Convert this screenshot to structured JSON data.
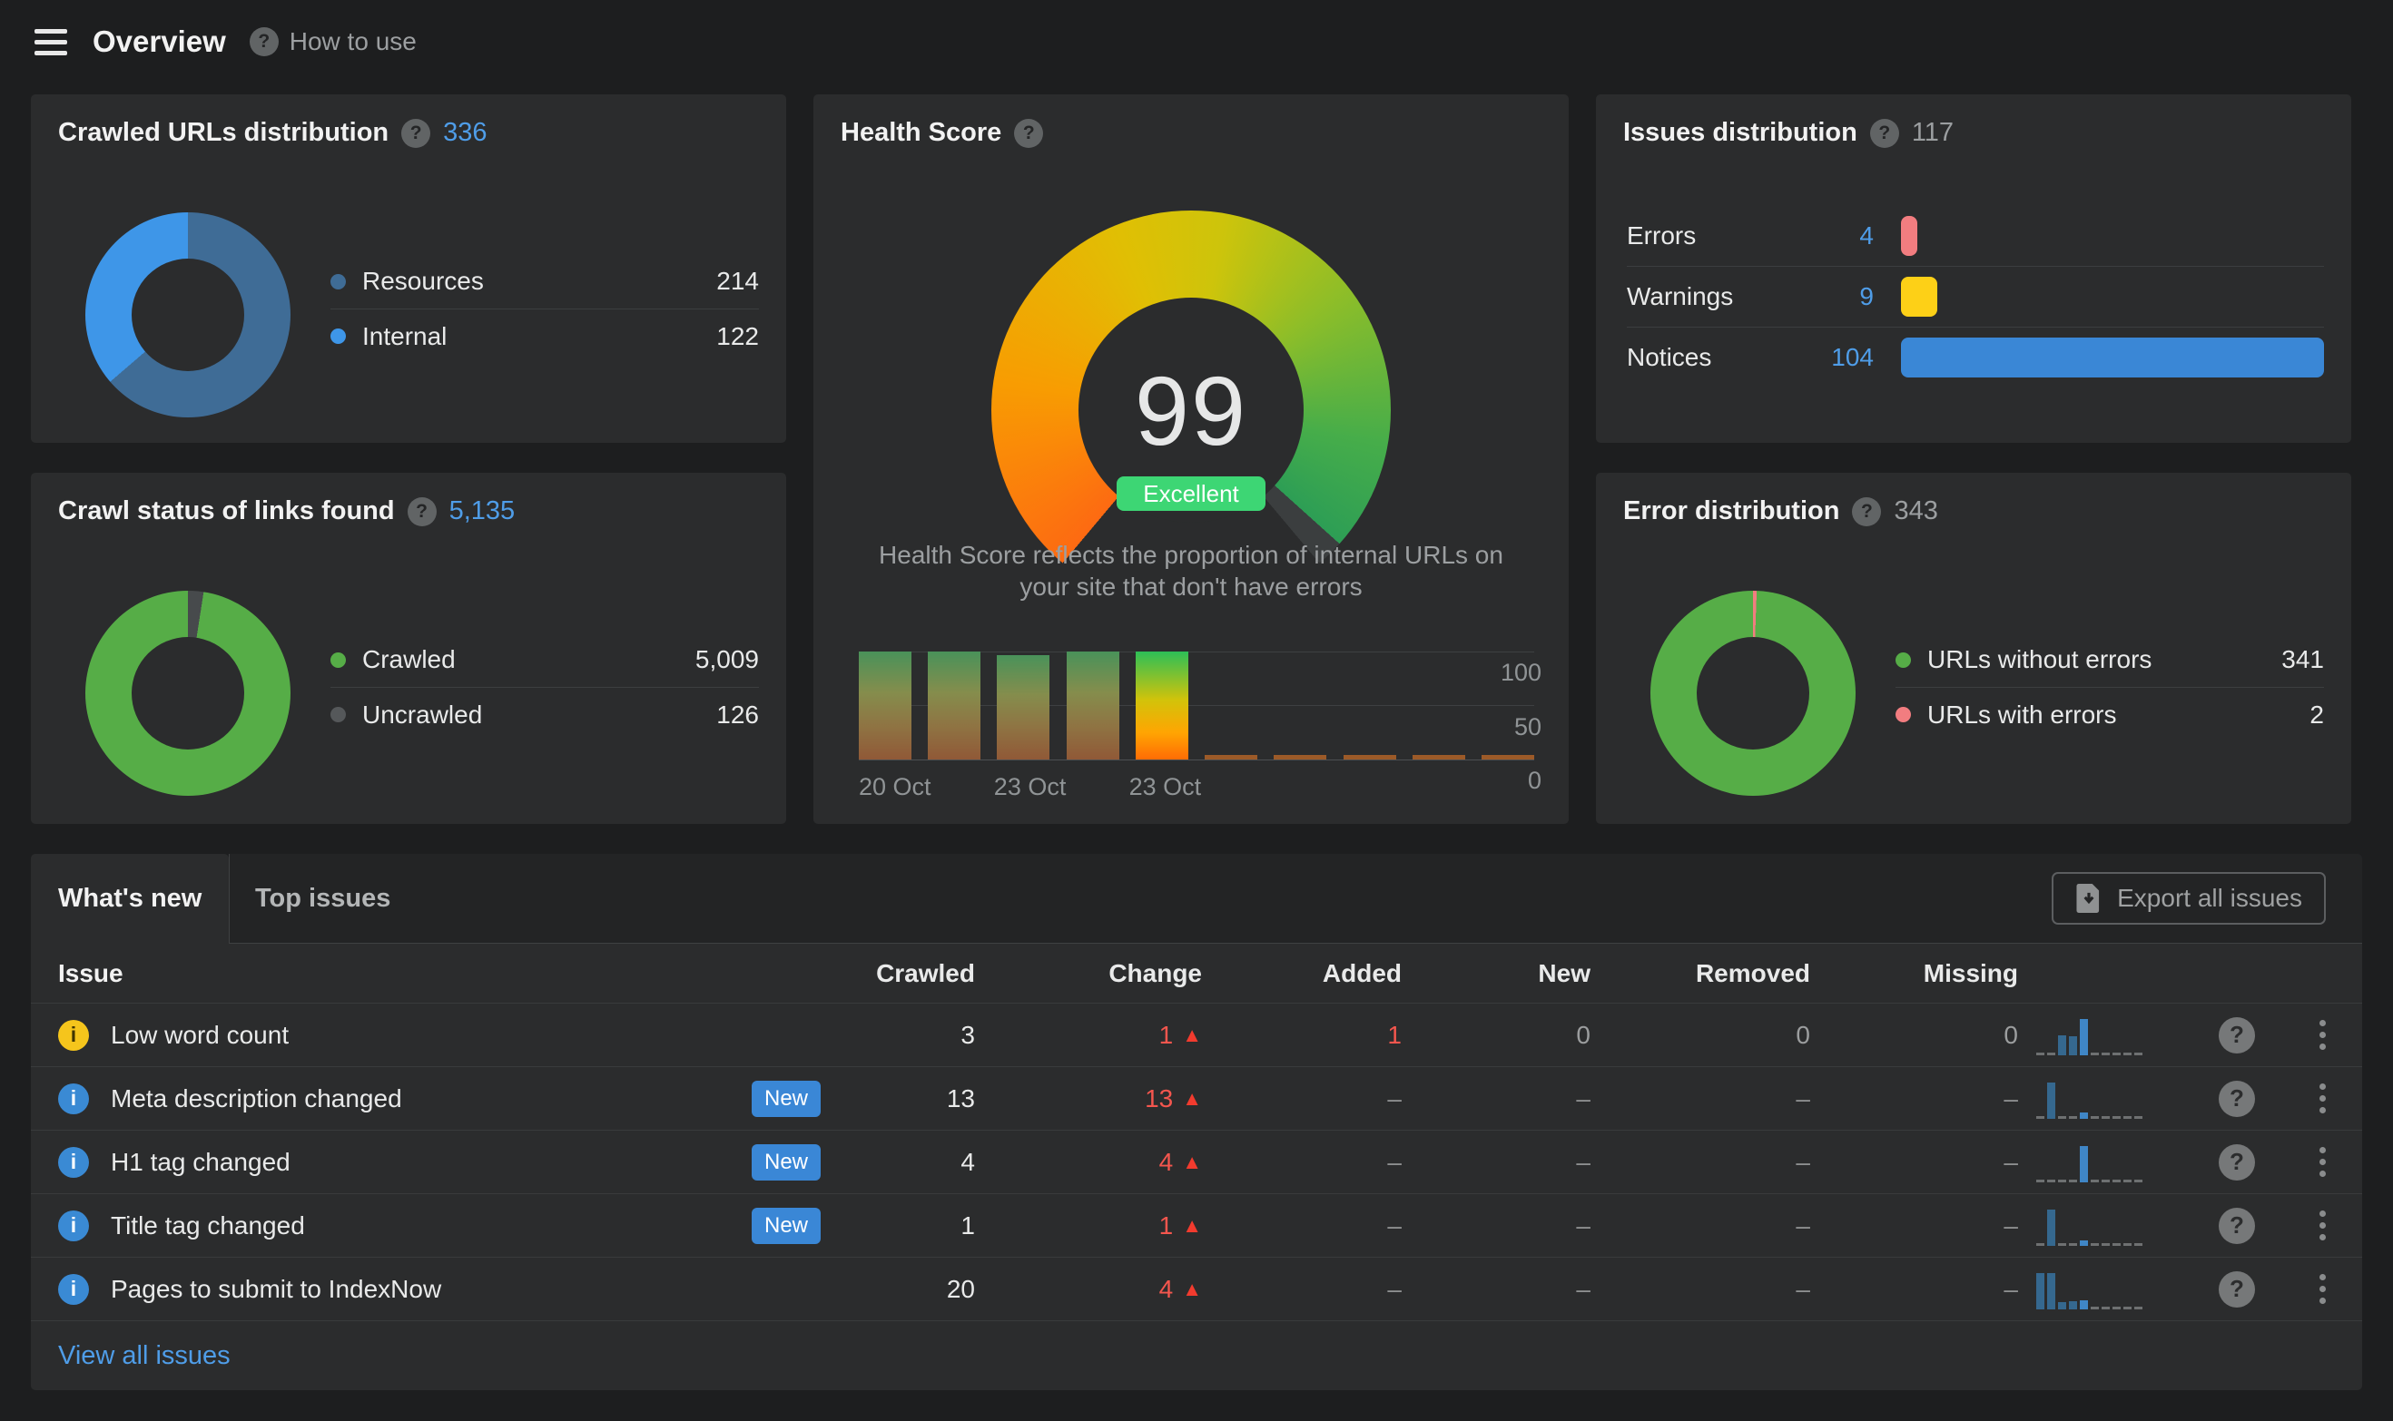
{
  "header": {
    "title": "Overview",
    "help_label": "How to use"
  },
  "cards": {
    "crawled": {
      "title": "Crawled URLs distribution",
      "total": "336",
      "slices": [
        {
          "color": "#3f6c96",
          "v": 214
        },
        {
          "color": "#3e96e8",
          "v": 122
        }
      ],
      "legend": [
        {
          "label": "Resources",
          "value": "214",
          "color": "#3f6c96"
        },
        {
          "label": "Internal",
          "value": "122",
          "color": "#3e96e8"
        }
      ]
    },
    "health": {
      "title": "Health Score",
      "score": "99",
      "badge": "Excellent",
      "description": "Health Score reflects the proportion of internal URLs on your site that don't have errors",
      "history": {
        "bars": [
          {
            "v": 100,
            "muted": true
          },
          {
            "v": 100,
            "muted": true
          },
          {
            "v": 97,
            "muted": true
          },
          {
            "v": 100,
            "muted": true
          },
          {
            "v": 100,
            "muted": false
          },
          {
            "v": 2,
            "muted": true
          },
          {
            "v": 2,
            "muted": true
          },
          {
            "v": 2,
            "muted": true
          },
          {
            "v": 2,
            "muted": true
          },
          {
            "v": 2,
            "muted": true
          }
        ],
        "x_labels": [
          {
            "text": "20 Oct",
            "slot": 0
          },
          {
            "text": "23 Oct",
            "slot": 2
          },
          {
            "text": "23 Oct",
            "slot": 4
          }
        ],
        "y_ticks": [
          {
            "text": "100",
            "y": 100
          },
          {
            "text": "50",
            "y": 50
          },
          {
            "text": "0",
            "y": 0
          }
        ]
      }
    },
    "issues": {
      "title": "Issues distribution",
      "total": "117",
      "rows": [
        {
          "label": "Errors",
          "value": "4",
          "v": 4,
          "color": "#f27d80"
        },
        {
          "label": "Warnings",
          "value": "9",
          "v": 9,
          "color": "#fdd017"
        },
        {
          "label": "Notices",
          "value": "104",
          "v": 104,
          "color": "#3a87d6"
        }
      ]
    },
    "crawlstatus": {
      "title": "Crawl status of links found",
      "total": "5,135",
      "slices": [
        {
          "color": "#474a4c",
          "v": 126
        },
        {
          "color": "#56ad47",
          "v": 5009
        }
      ],
      "legend": [
        {
          "label": "Crawled",
          "value": "5,009",
          "color": "#56ad47"
        },
        {
          "label": "Uncrawled",
          "value": "126",
          "color": "#55585a"
        }
      ]
    },
    "errordist": {
      "title": "Error distribution",
      "total": "343",
      "slices": [
        {
          "color": "#f27d80",
          "v": 2
        },
        {
          "color": "#56ad47",
          "v": 341
        }
      ],
      "legend": [
        {
          "label": "URLs without errors",
          "value": "341",
          "color": "#56ad47"
        },
        {
          "label": "URLs with errors",
          "value": "2",
          "color": "#f27d80"
        }
      ]
    }
  },
  "table": {
    "tabs": [
      {
        "label": "What's new"
      },
      {
        "label": "Top issues"
      }
    ],
    "export_label": "Export all issues",
    "columns": [
      "Issue",
      "Crawled",
      "Change",
      "Added",
      "New",
      "Removed",
      "Missing"
    ],
    "rows": [
      {
        "icon": "yellow",
        "label": "Low word count",
        "badge": null,
        "crawled": "3",
        "change": "1",
        "added": "1",
        "added_red": true,
        "new": "0",
        "removed": "0",
        "missing": "0",
        "spark": [
          0,
          0,
          55,
          52,
          100,
          0,
          0,
          0,
          0,
          0
        ]
      },
      {
        "icon": "blue",
        "label": "Meta description changed",
        "badge": "New",
        "crawled": "13",
        "change": "13",
        "added": "–",
        "added_red": false,
        "new": "–",
        "removed": "–",
        "missing": "–",
        "spark": [
          0,
          100,
          0,
          0,
          18,
          0,
          0,
          0,
          0,
          0
        ]
      },
      {
        "icon": "blue",
        "label": "H1 tag changed",
        "badge": "New",
        "crawled": "4",
        "change": "4",
        "added": "–",
        "added_red": false,
        "new": "–",
        "removed": "–",
        "missing": "–",
        "spark": [
          0,
          0,
          0,
          0,
          100,
          0,
          0,
          0,
          0,
          0
        ]
      },
      {
        "icon": "blue",
        "label": "Title tag changed",
        "badge": "New",
        "crawled": "1",
        "change": "1",
        "added": "–",
        "added_red": false,
        "new": "–",
        "removed": "–",
        "missing": "–",
        "spark": [
          0,
          100,
          0,
          0,
          15,
          0,
          0,
          0,
          0,
          0
        ]
      },
      {
        "icon": "blue",
        "label": "Pages to submit to IndexNow",
        "badge": null,
        "crawled": "20",
        "change": "4",
        "added": "–",
        "added_red": false,
        "new": "–",
        "removed": "–",
        "missing": "–",
        "spark": [
          100,
          100,
          20,
          22,
          26,
          0,
          0,
          0,
          0,
          0
        ]
      }
    ],
    "footer_link": "View all issues"
  }
}
